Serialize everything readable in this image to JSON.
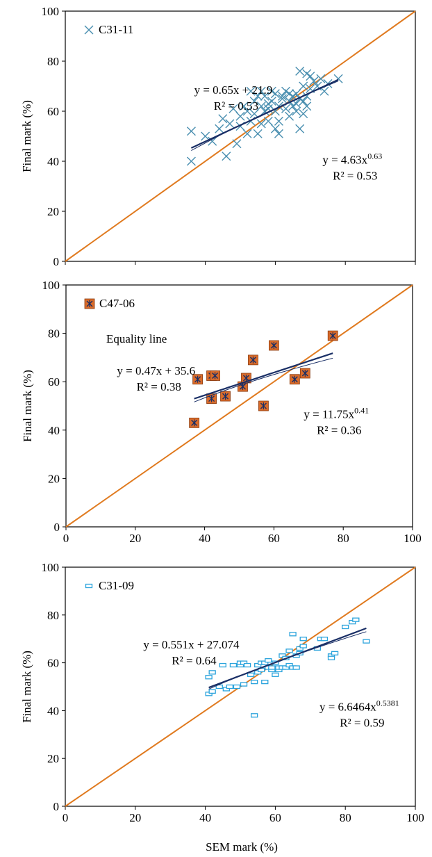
{
  "chart_data": [
    {
      "type": "scatter",
      "ylabel": "Final mark (%)",
      "xlabel": "",
      "xlim": [
        0,
        100
      ],
      "ylim": [
        0,
        100
      ],
      "xticks": [],
      "yticks": [
        "0",
        "20",
        "40",
        "60",
        "80",
        "100"
      ],
      "legend": [
        {
          "label": "C31-11",
          "marker": "x",
          "color": "#4a8fb0"
        }
      ],
      "legend_extra": "",
      "grid": false,
      "marker": "x",
      "marker_color": "#4a8fb0",
      "points": [
        [
          36,
          40
        ],
        [
          36,
          52
        ],
        [
          40,
          50
        ],
        [
          42,
          48
        ],
        [
          44,
          53
        ],
        [
          45,
          57
        ],
        [
          46,
          42
        ],
        [
          47,
          55
        ],
        [
          48,
          61
        ],
        [
          49,
          47
        ],
        [
          50,
          58
        ],
        [
          50,
          54
        ],
        [
          51,
          62
        ],
        [
          52,
          60
        ],
        [
          52,
          51
        ],
        [
          53,
          56
        ],
        [
          53,
          68
        ],
        [
          54,
          64
        ],
        [
          54,
          59
        ],
        [
          55,
          51
        ],
        [
          55,
          66
        ],
        [
          56,
          62
        ],
        [
          56,
          55
        ],
        [
          56,
          68
        ],
        [
          57,
          60
        ],
        [
          57,
          66
        ],
        [
          58,
          63
        ],
        [
          58,
          56
        ],
        [
          58,
          61
        ],
        [
          59,
          68
        ],
        [
          59,
          64
        ],
        [
          60,
          60
        ],
        [
          60,
          53
        ],
        [
          60,
          67
        ],
        [
          61,
          62
        ],
        [
          61,
          56
        ],
        [
          61,
          51
        ],
        [
          62,
          65
        ],
        [
          62,
          66
        ],
        [
          63,
          61
        ],
        [
          63,
          68
        ],
        [
          64,
          64
        ],
        [
          64,
          58
        ],
        [
          64,
          67
        ],
        [
          65,
          66
        ],
        [
          65,
          62
        ],
        [
          66,
          60
        ],
        [
          66,
          63
        ],
        [
          66,
          67
        ],
        [
          67,
          65
        ],
        [
          67,
          76
        ],
        [
          67,
          53
        ],
        [
          68,
          70
        ],
        [
          68,
          64
        ],
        [
          68,
          59
        ],
        [
          69,
          75
        ],
        [
          69,
          66
        ],
        [
          69,
          62
        ],
        [
          70,
          74
        ],
        [
          70,
          69
        ],
        [
          71,
          72
        ],
        [
          72,
          70
        ],
        [
          73,
          73
        ],
        [
          74,
          68
        ],
        [
          75,
          71
        ],
        [
          78,
          73
        ]
      ],
      "equality_line": true,
      "fit_lines": [
        {
          "kind": "linear",
          "slope": 0.65,
          "intercept": 21.9,
          "x_range": [
            36,
            78
          ],
          "color": "#1a2f66"
        },
        {
          "kind": "power",
          "coef": 4.63,
          "exp": 0.63,
          "x_range": [
            36,
            78
          ],
          "color": "#1a2f66"
        }
      ],
      "annotations": [
        {
          "eq_prefix": "y = 0.65x + 21.9",
          "eq_sup": "",
          "r2": "R² = 0.53",
          "x": 48,
          "y": 67,
          "anchor": "middle"
        },
        {
          "eq_prefix": "y = 4.63x",
          "eq_sup": "0.63",
          "r2": "R² = 0.53",
          "x": 82,
          "y": 39,
          "anchor": "middle"
        }
      ]
    },
    {
      "type": "scatter",
      "ylabel": "Final mark (%)",
      "xlabel": "",
      "xlim": [
        0,
        100
      ],
      "ylim": [
        0,
        100
      ],
      "xticks": [
        "0",
        "20",
        "40",
        "60",
        "80",
        "100"
      ],
      "yticks": [
        "0",
        "20",
        "40",
        "60",
        "80",
        "100"
      ],
      "legend": [
        {
          "label": "C47-06",
          "marker": "square-x",
          "color": "#d96b2a"
        }
      ],
      "legend_extra": "Equality line",
      "grid": false,
      "marker": "square-x",
      "marker_color": "#d96b2a",
      "points": [
        [
          37,
          43
        ],
        [
          38,
          61
        ],
        [
          42,
          53
        ],
        [
          42,
          62.5
        ],
        [
          43,
          62.5
        ],
        [
          46,
          54
        ],
        [
          51,
          58
        ],
        [
          52,
          61.5
        ],
        [
          54,
          69
        ],
        [
          57,
          50
        ],
        [
          60,
          75
        ],
        [
          66,
          61
        ],
        [
          69,
          63.5
        ],
        [
          77,
          79
        ]
      ],
      "equality_line": true,
      "fit_lines": [
        {
          "kind": "linear",
          "slope": 0.47,
          "intercept": 35.6,
          "x_range": [
            37,
            77
          ],
          "color": "#1a2f66"
        },
        {
          "kind": "power",
          "coef": 11.75,
          "exp": 0.41,
          "x_range": [
            37,
            77
          ],
          "color": "#1a2f66"
        }
      ],
      "annotations": [
        {
          "eq_prefix": "y = 0.47x + 35.6",
          "eq_sup": "",
          "r2": "R² = 0.38",
          "x": 26,
          "y": 63,
          "anchor": "middle"
        },
        {
          "eq_prefix": "y = 11.75x",
          "eq_sup": "0.41",
          "r2": "R² = 0.36",
          "x": 78,
          "y": 45,
          "anchor": "middle"
        }
      ]
    },
    {
      "type": "scatter",
      "ylabel": "Final mark (%)",
      "xlabel": "SEM mark (%)",
      "xlim": [
        0,
        100
      ],
      "ylim": [
        0,
        100
      ],
      "xticks": [
        "0",
        "20",
        "40",
        "60",
        "80",
        "100"
      ],
      "yticks": [
        "0",
        "20",
        "40",
        "60",
        "80",
        "100"
      ],
      "legend": [
        {
          "label": "C31-09",
          "marker": "hollow-rect",
          "color": "#2aa3dc"
        }
      ],
      "legend_extra": "",
      "grid": false,
      "marker": "hollow-rect",
      "marker_color": "#2aa3dc",
      "points": [
        [
          41,
          47
        ],
        [
          41,
          54
        ],
        [
          42,
          48
        ],
        [
          42,
          56
        ],
        [
          44,
          50
        ],
        [
          45,
          59
        ],
        [
          46,
          49
        ],
        [
          47,
          50
        ],
        [
          48,
          59
        ],
        [
          49,
          50
        ],
        [
          50,
          59
        ],
        [
          50,
          60
        ],
        [
          51,
          51
        ],
        [
          51,
          60
        ],
        [
          52,
          59
        ],
        [
          53,
          55
        ],
        [
          54,
          52
        ],
        [
          54,
          38
        ],
        [
          55,
          56
        ],
        [
          55,
          59
        ],
        [
          56,
          57
        ],
        [
          56,
          60
        ],
        [
          57,
          52
        ],
        [
          57,
          60
        ],
        [
          58,
          58
        ],
        [
          58,
          61
        ],
        [
          59,
          57
        ],
        [
          59,
          58
        ],
        [
          60,
          55
        ],
        [
          60,
          60
        ],
        [
          61,
          57
        ],
        [
          61,
          58
        ],
        [
          62,
          58
        ],
        [
          62,
          63
        ],
        [
          63,
          58
        ],
        [
          63,
          62
        ],
        [
          64,
          65
        ],
        [
          64,
          59
        ],
        [
          65,
          58
        ],
        [
          65,
          72
        ],
        [
          66,
          58
        ],
        [
          66,
          63
        ],
        [
          67,
          66
        ],
        [
          67,
          64
        ],
        [
          68,
          70
        ],
        [
          68,
          67
        ],
        [
          72,
          66
        ],
        [
          73,
          70
        ],
        [
          74,
          70
        ],
        [
          76,
          63
        ],
        [
          76,
          62
        ],
        [
          77,
          64
        ],
        [
          80,
          75
        ],
        [
          82,
          77
        ],
        [
          83,
          78
        ],
        [
          86,
          69
        ]
      ],
      "equality_line": true,
      "fit_lines": [
        {
          "kind": "linear",
          "slope": 0.551,
          "intercept": 27.074,
          "x_range": [
            41,
            86
          ],
          "color": "#1a2f66"
        },
        {
          "kind": "power",
          "coef": 6.6464,
          "exp": 0.5381,
          "x_range": [
            41,
            86
          ],
          "color": "#1a2f66"
        }
      ],
      "annotations": [
        {
          "eq_prefix": "y = 0.551x + 27.074",
          "eq_sup": "",
          "r2": "R² = 0.64",
          "x": 36,
          "y": 66,
          "anchor": "middle"
        },
        {
          "eq_prefix": "y = 6.6464x",
          "eq_sup": "0.5381",
          "r2": "R² = 0.59",
          "x": 84,
          "y": 40,
          "anchor": "middle"
        }
      ]
    }
  ],
  "colors": {
    "equality_line": "#e07a1f",
    "axis": "#000000",
    "fit_line": "#1a2f66"
  }
}
